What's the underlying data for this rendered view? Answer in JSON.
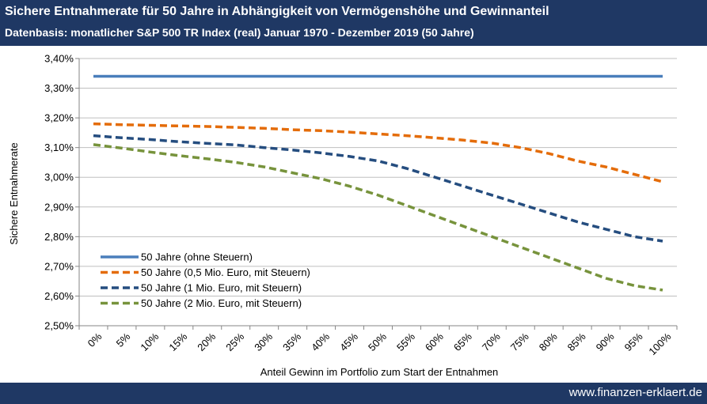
{
  "header": {
    "title": "Sichere Entnahmerate für 50 Jahre in Abhängigkeit von Vermögenshöhe und Gewinnanteil",
    "subtitle": "Datenbasis: monatlicher S&P 500 TR Index (real) Januar 1970 - Dezember 2019 (50 Jahre)"
  },
  "footer": {
    "url": "www.finanzen-erklaert.de"
  },
  "colors": {
    "header_bg": "#1f3864",
    "grid": "#bfbfbf",
    "axis": "#868686"
  },
  "chart_data": {
    "type": "line",
    "title": "Sichere Entnahmerate für 50 Jahre in Abhängigkeit von Vermögenshöhe und Gewinnanteil",
    "subtitle": "Datenbasis: monatlicher S&P 500 TR Index (real) Januar 1970 - Dezember 2019 (50 Jahre)",
    "xlabel": "Anteil Gewinn im Portfolio zum Start der Entnahmen",
    "ylabel": "Sichere Entnahmerate",
    "categories": [
      "0%",
      "5%",
      "10%",
      "15%",
      "20%",
      "25%",
      "30%",
      "35%",
      "40%",
      "45%",
      "50%",
      "55%",
      "60%",
      "65%",
      "70%",
      "75%",
      "80%",
      "85%",
      "90%",
      "95%",
      "100%"
    ],
    "ylim": [
      2.5,
      3.4
    ],
    "yticks": [
      "2,50%",
      "2,60%",
      "2,70%",
      "2,80%",
      "2,90%",
      "3,00%",
      "3,10%",
      "3,20%",
      "3,30%",
      "3,40%"
    ],
    "grid": true,
    "legend_position": "bottom-left",
    "series": [
      {
        "name": "50 Jahre (ohne Steuern)",
        "color": "#4a7ebb",
        "dash": "solid",
        "values": [
          3.34,
          3.34,
          3.34,
          3.34,
          3.34,
          3.34,
          3.34,
          3.34,
          3.34,
          3.34,
          3.34,
          3.34,
          3.34,
          3.34,
          3.34,
          3.34,
          3.34,
          3.34,
          3.34,
          3.34,
          3.34
        ]
      },
      {
        "name": "50 Jahre (0,5 Mio. Euro, mit Steuern)",
        "color": "#e46c0a",
        "dash": "dashed",
        "values": [
          3.18,
          3.177,
          3.175,
          3.173,
          3.171,
          3.168,
          3.165,
          3.16,
          3.157,
          3.152,
          3.146,
          3.14,
          3.133,
          3.125,
          3.115,
          3.1,
          3.08,
          3.055,
          3.035,
          3.01,
          2.985
        ]
      },
      {
        "name": "50 Jahre (1 Mio. Euro, mit Steuern)",
        "color": "#254d7f",
        "dash": "dashed",
        "values": [
          3.14,
          3.133,
          3.127,
          3.12,
          3.114,
          3.109,
          3.1,
          3.092,
          3.082,
          3.07,
          3.055,
          3.03,
          3.0,
          2.97,
          2.94,
          2.91,
          2.88,
          2.85,
          2.825,
          2.8,
          2.785
        ]
      },
      {
        "name": "50 Jahre (2 Mio. Euro, mit Steuern)",
        "color": "#77933c",
        "dash": "dashed",
        "values": [
          3.11,
          3.098,
          3.085,
          3.073,
          3.062,
          3.05,
          3.035,
          3.015,
          2.995,
          2.97,
          2.94,
          2.905,
          2.87,
          2.835,
          2.8,
          2.765,
          2.73,
          2.695,
          2.66,
          2.635,
          2.62
        ]
      }
    ]
  }
}
